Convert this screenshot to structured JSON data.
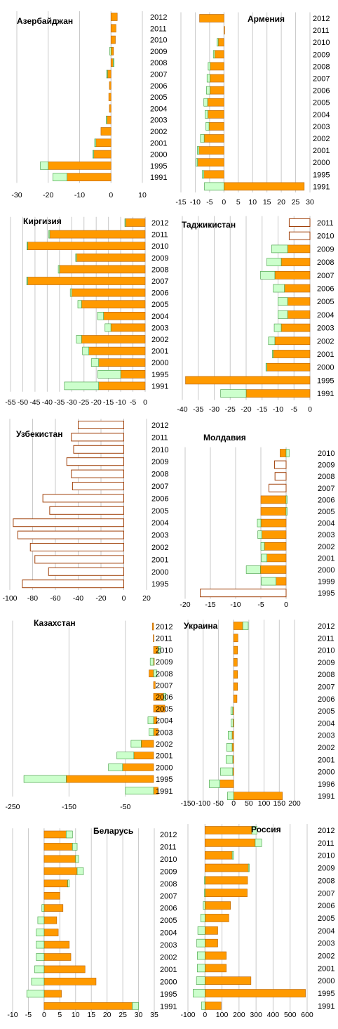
{
  "colors": {
    "orange": "#ff9a00",
    "orange_stroke": "#b35f00",
    "green": "#ccffcc",
    "green_stroke": "#3c9a3c",
    "outline_fill": "#ffffff",
    "outline_stroke": "#a0410a",
    "grid": "#c9c9c9"
  },
  "chart_data": [
    {
      "type": "bar",
      "orientation": "horizontal",
      "stacked": true,
      "title": "Азербайджан",
      "labels_side": "right",
      "grid": true,
      "xlim": [
        -30,
        10
      ],
      "xticks": [
        -30,
        -20,
        -10,
        0,
        10
      ],
      "categories": [
        "2012",
        "2011",
        "2010",
        "2009",
        "2008",
        "2007",
        "2006",
        "2005",
        "2004",
        "2003",
        "2002",
        "2001",
        "2000",
        "1995",
        "1991"
      ],
      "series": [
        {
          "values": [
            2,
            1.6,
            1.4,
            0.8,
            0.7,
            -1.1,
            -0.5,
            -0.7,
            -0.5,
            -1.3,
            -3.2,
            -4.8,
            -5.5,
            -20,
            -14
          ]
        },
        {
          "values": [
            0,
            0,
            0,
            -0.4,
            0.3,
            -0.3,
            0,
            0,
            0,
            -0.2,
            0,
            -0.4,
            -0.3,
            -2.5,
            -4.5
          ]
        }
      ]
    },
    {
      "type": "bar",
      "orientation": "horizontal",
      "stacked": true,
      "title": "Армения",
      "labels_side": "right",
      "grid": true,
      "xlim": [
        -15,
        30
      ],
      "xticks": [
        -15,
        -10,
        -5,
        0,
        5,
        10,
        15,
        20,
        25,
        30
      ],
      "categories": [
        "2012",
        "2011",
        "2010",
        "2009",
        "2008",
        "2007",
        "2006",
        "2005",
        "2004",
        "2003",
        "2002",
        "2001",
        "2000",
        "1995",
        "1991"
      ],
      "series": [
        {
          "values": [
            -8.5,
            0,
            -2,
            -3.2,
            -4.8,
            -4.9,
            -4.9,
            -5.7,
            -5.6,
            -5.2,
            -6.9,
            -8.7,
            -9.2,
            -7,
            28
          ]
        },
        {
          "values": [
            0,
            0,
            -0.4,
            -0.5,
            -0.7,
            -1,
            -1.2,
            -1.3,
            -1,
            -1.1,
            -1.3,
            -0.6,
            -0.5,
            -0.6,
            -6.8
          ]
        }
      ]
    },
    {
      "type": "bar",
      "orientation": "horizontal",
      "stacked": true,
      "title": "Киргизия",
      "labels_side": "right",
      "grid": true,
      "xlim": [
        -55,
        0
      ],
      "xticks": [
        -55,
        -50,
        -45,
        -40,
        -35,
        -30,
        -25,
        -20,
        -15,
        -10,
        -5,
        0
      ],
      "categories": [
        "2012",
        "2011",
        "2010",
        "2009",
        "2008",
        "2007",
        "2006",
        "2005",
        "2004",
        "2003",
        "2002",
        "2001",
        "2000",
        "1995",
        "1991"
      ],
      "series": [
        {
          "values": [
            -8,
            -39,
            -48,
            -28,
            -35,
            -48,
            -30,
            -26,
            -17,
            -14,
            -26,
            -23,
            -19,
            -10,
            -19
          ]
        },
        {
          "values": [
            -0.3,
            -0.4,
            -0.3,
            -0.4,
            -0.5,
            -0.4,
            -0.6,
            -1.5,
            -2.4,
            -2.4,
            -2.1,
            -2.6,
            -3,
            -9.3,
            -14
          ]
        }
      ]
    },
    {
      "type": "bar",
      "orientation": "horizontal",
      "stacked": true,
      "title": "Таджикистан",
      "labels_side": "right",
      "grid": true,
      "xlim": [
        -40,
        0
      ],
      "xticks": [
        -40,
        -35,
        -30,
        -25,
        -20,
        -15,
        -10,
        -5,
        0
      ],
      "categories": [
        "2011",
        "2010",
        "2009",
        "2008",
        "2007",
        "2006",
        "2005",
        "2004",
        "2003",
        "2002",
        "2001",
        "2000",
        "1995",
        "1991"
      ],
      "series": [
        {
          "values": [
            null,
            null,
            -7,
            -9,
            -11,
            -8,
            -7,
            -7,
            -9,
            -11,
            -11.5,
            -13.5,
            -39,
            -20
          ]
        },
        {
          "values": [
            null,
            null,
            -5,
            -4.5,
            -4.5,
            -3.5,
            -3,
            -3,
            -2.2,
            -2,
            -0.3,
            -0.3,
            0,
            -8
          ]
        }
      ],
      "outline_values": [
        -6.5,
        -6.5,
        null,
        null,
        null,
        null,
        null,
        null,
        null,
        null,
        null,
        null,
        null,
        null
      ]
    },
    {
      "type": "bar",
      "orientation": "horizontal",
      "title": "Узбекистан",
      "labels_side": "right",
      "grid": true,
      "xlim": [
        -100,
        20
      ],
      "xticks": [
        -100,
        -80,
        -60,
        -40,
        -20,
        0,
        20
      ],
      "categories": [
        "2012",
        "2011",
        "2010",
        "2009",
        "2008",
        "2007",
        "2006",
        "2005",
        "2004",
        "2003",
        "2002",
        "2001",
        "2000",
        "1995"
      ],
      "outline_values": [
        -40,
        -46,
        -44,
        -50,
        -46,
        -45,
        -71,
        -65,
        -97,
        -93,
        -82,
        -78,
        -66,
        -89
      ]
    },
    {
      "type": "bar",
      "orientation": "horizontal",
      "stacked": true,
      "title": "Молдавия",
      "labels_side": "right",
      "grid": true,
      "xlim": [
        -20,
        0
      ],
      "xticks": [
        -20,
        -15,
        -10,
        -5,
        0
      ],
      "categories": [
        "2010",
        "2009",
        "2008",
        "2007",
        "2006",
        "2005",
        "2004",
        "2003",
        "2002",
        "2001",
        "2000",
        "1999",
        "1995"
      ],
      "series": [
        {
          "values": [
            -1.2,
            null,
            null,
            null,
            -5,
            -5,
            -5,
            -4.8,
            -4.3,
            -3.8,
            -5.1,
            -2,
            null
          ]
        },
        {
          "values": [
            0.6,
            null,
            null,
            null,
            0.2,
            0.2,
            -0.7,
            -0.8,
            -0.7,
            -1.1,
            -2.8,
            -2.9,
            null
          ]
        }
      ],
      "outline_values": [
        null,
        -2.3,
        -2.2,
        -3.4,
        null,
        null,
        null,
        null,
        null,
        null,
        null,
        null,
        -17
      ]
    },
    {
      "type": "bar",
      "orientation": "horizontal",
      "stacked": true,
      "title": "Казахстан",
      "labels_side": "right",
      "grid": true,
      "xlim": [
        -250,
        0
      ],
      "xticks": [
        -250,
        -150,
        -50
      ],
      "categories": [
        "2012",
        "2011",
        "2010",
        "2009",
        "2008",
        "2007",
        "2006",
        "2005",
        "2004",
        "2003",
        "2002",
        "2001",
        "2000",
        "1995",
        "1991"
      ],
      "series": [
        {
          "values": [
            -2,
            -0.5,
            8,
            0,
            -8,
            3,
            18,
            20,
            6,
            8,
            -22,
            -35,
            -55,
            -155,
            8
          ]
        },
        {
          "values": [
            0,
            0,
            4,
            -6,
            6,
            0,
            4,
            0,
            -10,
            -8,
            -18,
            -30,
            -25,
            -75,
            -50
          ]
        }
      ]
    },
    {
      "type": "bar",
      "orientation": "horizontal",
      "stacked": true,
      "title": "Украина",
      "labels_side": "right",
      "grid": true,
      "xlim": [
        -150,
        200
      ],
      "xticks": [
        -150,
        -100,
        -50,
        0,
        50,
        100,
        150,
        200
      ],
      "categories": [
        "2012",
        "2011",
        "2010",
        "2009",
        "2008",
        "2007",
        "2006",
        "2005",
        "2004",
        "2003",
        "2002",
        "2001",
        "2000",
        "1996",
        "1991"
      ],
      "series": [
        {
          "values": [
            30,
            14,
            13,
            12,
            13,
            13,
            11,
            -3,
            -2,
            -5,
            -5,
            -3,
            -3,
            -45,
            160
          ]
        },
        {
          "values": [
            18,
            0,
            0,
            0,
            0,
            0,
            0,
            -6,
            -6,
            -13,
            -18,
            -22,
            -40,
            -35,
            -20
          ]
        }
      ]
    },
    {
      "type": "bar",
      "orientation": "horizontal",
      "stacked": true,
      "title": "Беларусь",
      "labels_side": "right",
      "grid": true,
      "xlim": [
        -10,
        35
      ],
      "xticks": [
        -10,
        -5,
        0,
        5,
        10,
        15,
        20,
        25,
        30,
        35
      ],
      "categories": [
        "2012",
        "2011",
        "2010",
        "2009",
        "2008",
        "2007",
        "2006",
        "2005",
        "2004",
        "2003",
        "2002",
        "2001",
        "2000",
        "1995",
        "1991"
      ],
      "series": [
        {
          "values": [
            7,
            9,
            10,
            10.5,
            7.5,
            5,
            6,
            4,
            4.5,
            8,
            8.5,
            13,
            16.5,
            5.5,
            28
          ]
        },
        {
          "values": [
            2,
            1.5,
            1,
            2,
            0.5,
            0,
            -0.7,
            -2,
            -2.5,
            -2.5,
            -2.5,
            -3,
            -4,
            -5.5,
            2
          ]
        }
      ]
    },
    {
      "type": "bar",
      "orientation": "horizontal",
      "stacked": true,
      "title": "Россия",
      "labels_side": "right",
      "grid": true,
      "xlim": [
        -100,
        600
      ],
      "xticks": [
        -100,
        0,
        100,
        200,
        300,
        400,
        500,
        600
      ],
      "categories": [
        "2012",
        "2011",
        "2010",
        "2009",
        "2008",
        "2007",
        "2006",
        "2005",
        "2004",
        "2003",
        "2002",
        "2001",
        "2000",
        "1995",
        "1991"
      ],
      "series": [
        {
          "values": [
            275,
            295,
            160,
            255,
            250,
            248,
            150,
            140,
            75,
            75,
            125,
            125,
            270,
            590,
            95
          ]
        },
        {
          "values": [
            30,
            38,
            8,
            5,
            -3,
            -3,
            -10,
            -25,
            -42,
            -48,
            -45,
            -45,
            -50,
            -70,
            -20
          ]
        }
      ]
    }
  ]
}
